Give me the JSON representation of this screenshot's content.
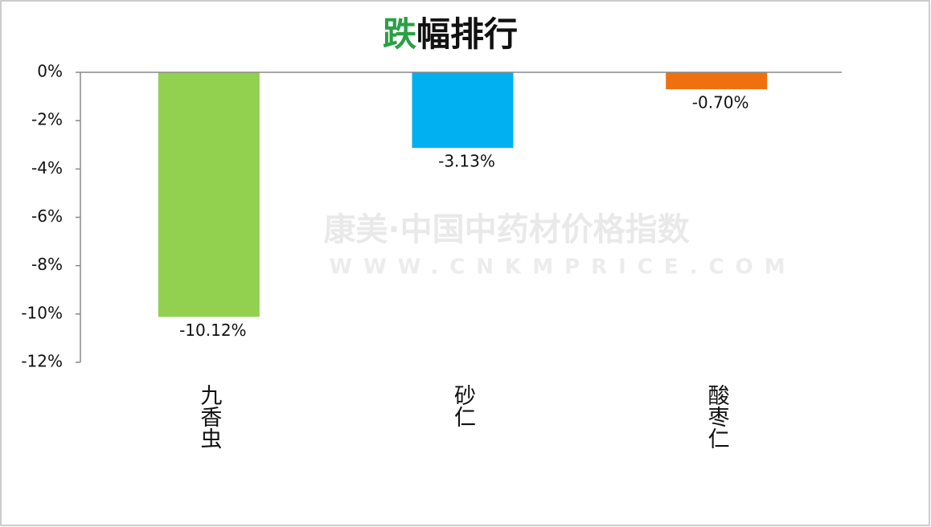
{
  "chart_data": {
    "type": "bar",
    "title": "跌幅排行",
    "title_color": "#111111",
    "title_accent_color": "#2aa046",
    "watermark": [
      "康美·中国中药材价格指数",
      "WWW.CNKMPRICE.COM"
    ],
    "categories": [
      "九香虫",
      "砂仁",
      "酸枣仁"
    ],
    "values": [
      -10.12,
      -3.13,
      -0.7
    ],
    "value_labels": [
      "-10.12%",
      "-3.13%",
      "-0.70%"
    ],
    "colors": [
      "#92d050",
      "#00b0f0",
      "#f07010"
    ],
    "ylim": [
      -12,
      0
    ],
    "yticks": [
      {
        "value": -12,
        "label": "-12%"
      },
      {
        "value": -10,
        "label": "-10%"
      },
      {
        "value": -8,
        "label": "-8%"
      },
      {
        "value": -6,
        "label": "-6%"
      },
      {
        "value": -4,
        "label": "-4%"
      },
      {
        "value": -2,
        "label": "-2%"
      },
      {
        "value": 0,
        "label": "0%"
      }
    ],
    "grid": false
  }
}
